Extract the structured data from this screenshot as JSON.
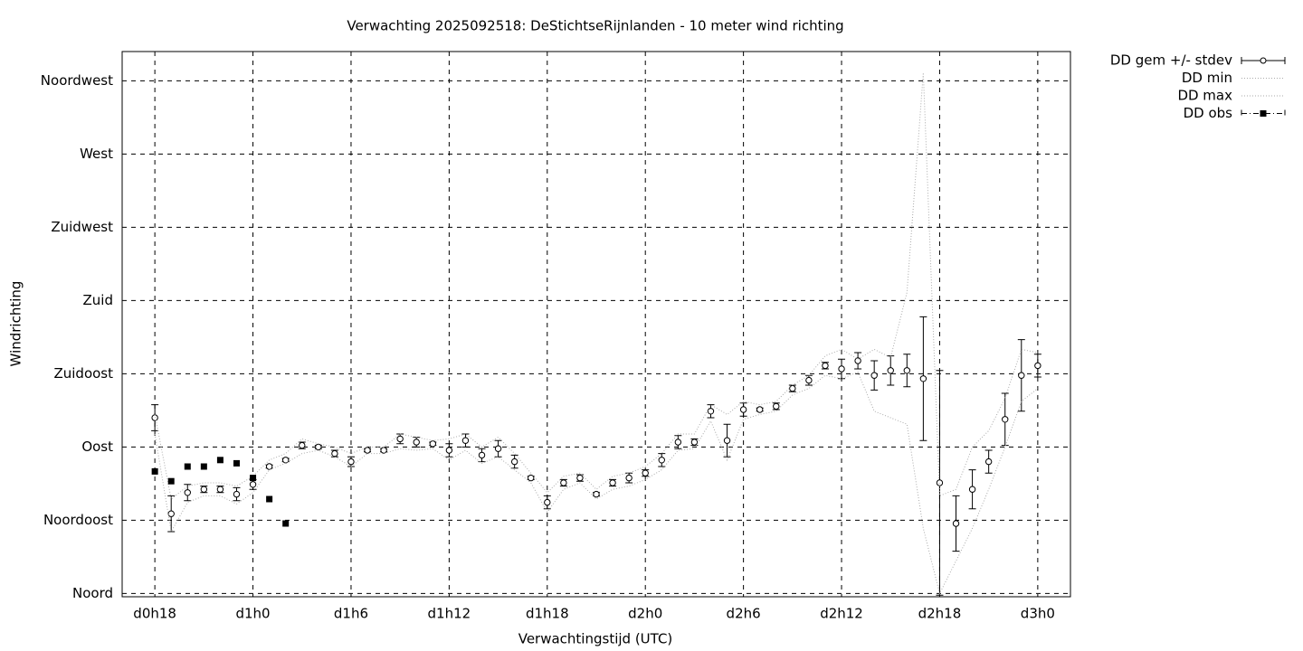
{
  "chart_data": {
    "type": "errorbar",
    "title": "Verwachting 2025092518: DeStichtseRijnlanden - 10 meter wind richting",
    "xlabel": "Verwachtingstijd (UTC)",
    "ylabel": "Windrichting",
    "xlim": [
      16,
      74
    ],
    "ylim": [
      -2,
      333
    ],
    "xticks": [
      {
        "value": 18,
        "label": "d0h18"
      },
      {
        "value": 24,
        "label": "d1h0"
      },
      {
        "value": 30,
        "label": "d1h6"
      },
      {
        "value": 36,
        "label": "d1h12"
      },
      {
        "value": 42,
        "label": "d1h18"
      },
      {
        "value": 48,
        "label": "d2h0"
      },
      {
        "value": 54,
        "label": "d2h6"
      },
      {
        "value": 60,
        "label": "d2h12"
      },
      {
        "value": 66,
        "label": "d2h18"
      },
      {
        "value": 72,
        "label": "d3h0"
      }
    ],
    "yticks": [
      {
        "value": 0,
        "label": "Noord"
      },
      {
        "value": 45,
        "label": "Noordoost"
      },
      {
        "value": 90,
        "label": "Oost"
      },
      {
        "value": 135,
        "label": "Zuidoost"
      },
      {
        "value": 180,
        "label": "Zuid"
      },
      {
        "value": 225,
        "label": "Zuidwest"
      },
      {
        "value": 270,
        "label": "West"
      },
      {
        "value": 315,
        "label": "Noordwest"
      }
    ],
    "grid": true,
    "legend": "outside-top-right",
    "x": [
      18,
      19,
      20,
      21,
      22,
      23,
      24,
      25,
      26,
      27,
      28,
      29,
      30,
      31,
      32,
      33,
      34,
      35,
      36,
      37,
      38,
      39,
      40,
      41,
      42,
      43,
      44,
      45,
      46,
      47,
      48,
      49,
      50,
      51,
      52,
      53,
      54,
      55,
      56,
      57,
      58,
      59,
      60,
      61,
      62,
      63,
      64,
      65,
      66,
      67,
      68,
      69,
      70,
      71,
      72
    ],
    "series": [
      {
        "name": "DD gem +/- stdev",
        "style": "errorbar",
        "color": "#000000",
        "values": [
          108,
          49,
          62,
          64,
          64,
          61,
          67,
          78,
          82,
          91,
          90,
          86,
          81,
          88,
          88,
          95,
          93,
          92,
          88,
          94,
          85,
          89,
          81,
          71,
          56,
          68,
          71,
          61,
          68,
          71,
          74,
          82,
          93,
          93,
          112,
          94,
          113,
          113,
          115,
          126,
          131,
          140,
          138,
          143,
          134,
          137,
          137,
          132,
          68,
          43,
          64,
          81,
          107,
          134,
          140
        ],
        "stdev": [
          8,
          11,
          5,
          2,
          2,
          4,
          3,
          1,
          1,
          2,
          1,
          2,
          3,
          1,
          1,
          3,
          3,
          1,
          4,
          4,
          4,
          5,
          4,
          1,
          4,
          2,
          2,
          1,
          2,
          3,
          2,
          4,
          4,
          2,
          4,
          10,
          4,
          1,
          2,
          2,
          3,
          2,
          6,
          5,
          9,
          9,
          10,
          38,
          69,
          17,
          12,
          7,
          16,
          22,
          7
        ]
      },
      {
        "name": "DD min",
        "style": "dotted",
        "color": "#aaaaaa",
        "values": [
          98,
          38,
          56,
          60,
          60,
          55,
          62,
          76,
          80,
          86,
          88,
          84,
          78,
          86,
          86,
          89,
          88,
          89,
          82,
          88,
          80,
          84,
          76,
          68,
          50,
          64,
          68,
          58,
          64,
          66,
          70,
          76,
          88,
          89,
          106,
          82,
          107,
          110,
          112,
          122,
          126,
          134,
          132,
          136,
          112,
          108,
          104,
          40,
          0,
          20,
          40,
          64,
          90,
          118,
          126
        ]
      },
      {
        "name": "DD max",
        "style": "dotted",
        "color": "#aaaaaa",
        "values": [
          110,
          58,
          66,
          68,
          68,
          66,
          72,
          82,
          86,
          95,
          92,
          90,
          86,
          90,
          90,
          98,
          96,
          94,
          95,
          98,
          90,
          96,
          86,
          74,
          62,
          72,
          74,
          64,
          72,
          74,
          78,
          86,
          98,
          98,
          116,
          110,
          118,
          116,
          118,
          128,
          134,
          146,
          150,
          144,
          150,
          145,
          185,
          320,
          60,
          64,
          90,
          100,
          120,
          150,
          148
        ]
      },
      {
        "name": "DD obs",
        "style": "points",
        "color": "#000000",
        "x": [
          18,
          19,
          20,
          21,
          22,
          23,
          24,
          25,
          26
        ],
        "values": [
          75,
          69,
          78,
          78,
          82,
          80,
          71,
          58,
          43
        ]
      }
    ]
  }
}
